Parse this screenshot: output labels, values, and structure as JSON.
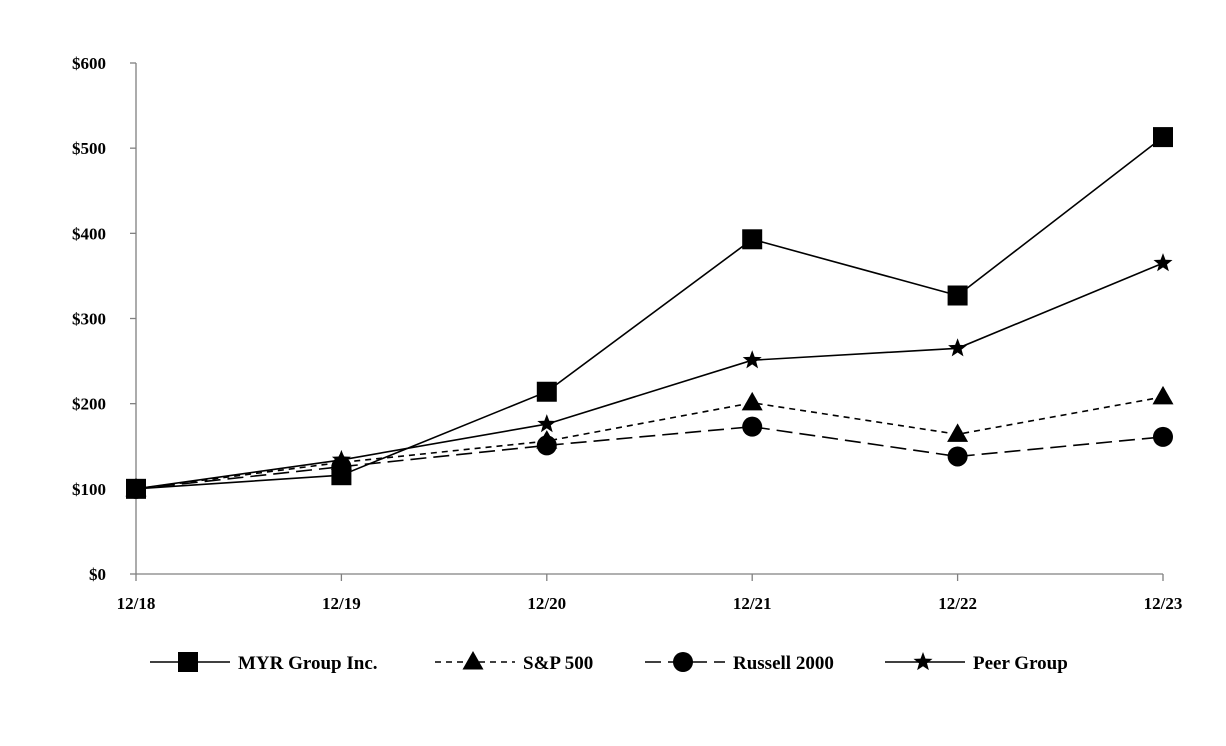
{
  "chart_data": {
    "type": "line",
    "title": "",
    "xlabel": "",
    "ylabel": "",
    "categories": [
      "12/18",
      "12/19",
      "12/20",
      "12/21",
      "12/22",
      "12/23"
    ],
    "ylim": [
      0,
      600
    ],
    "yticks": [
      "$0",
      "$100",
      "$200",
      "$300",
      "$400",
      "$500",
      "$600"
    ],
    "ytick_values": [
      0,
      100,
      200,
      300,
      400,
      500,
      600
    ],
    "grid": false,
    "legend_position": "bottom",
    "series": [
      {
        "name": "MYR Group Inc.",
        "marker": "square",
        "dash": "solid",
        "values": [
          100,
          116,
          214,
          393,
          327,
          513
        ]
      },
      {
        "name": "S&P 500",
        "marker": "triangle",
        "dash": "short-dash",
        "values": [
          100,
          131,
          156,
          201,
          164,
          208
        ]
      },
      {
        "name": "Russell 2000",
        "marker": "circle",
        "dash": "long-dash",
        "values": [
          100,
          126,
          151,
          173,
          138,
          161
        ]
      },
      {
        "name": "Peer Group",
        "marker": "star",
        "dash": "solid",
        "values": [
          100,
          134,
          176,
          251,
          265,
          365
        ]
      }
    ],
    "colors": {
      "line": "#000000",
      "axis": "#808080"
    }
  }
}
